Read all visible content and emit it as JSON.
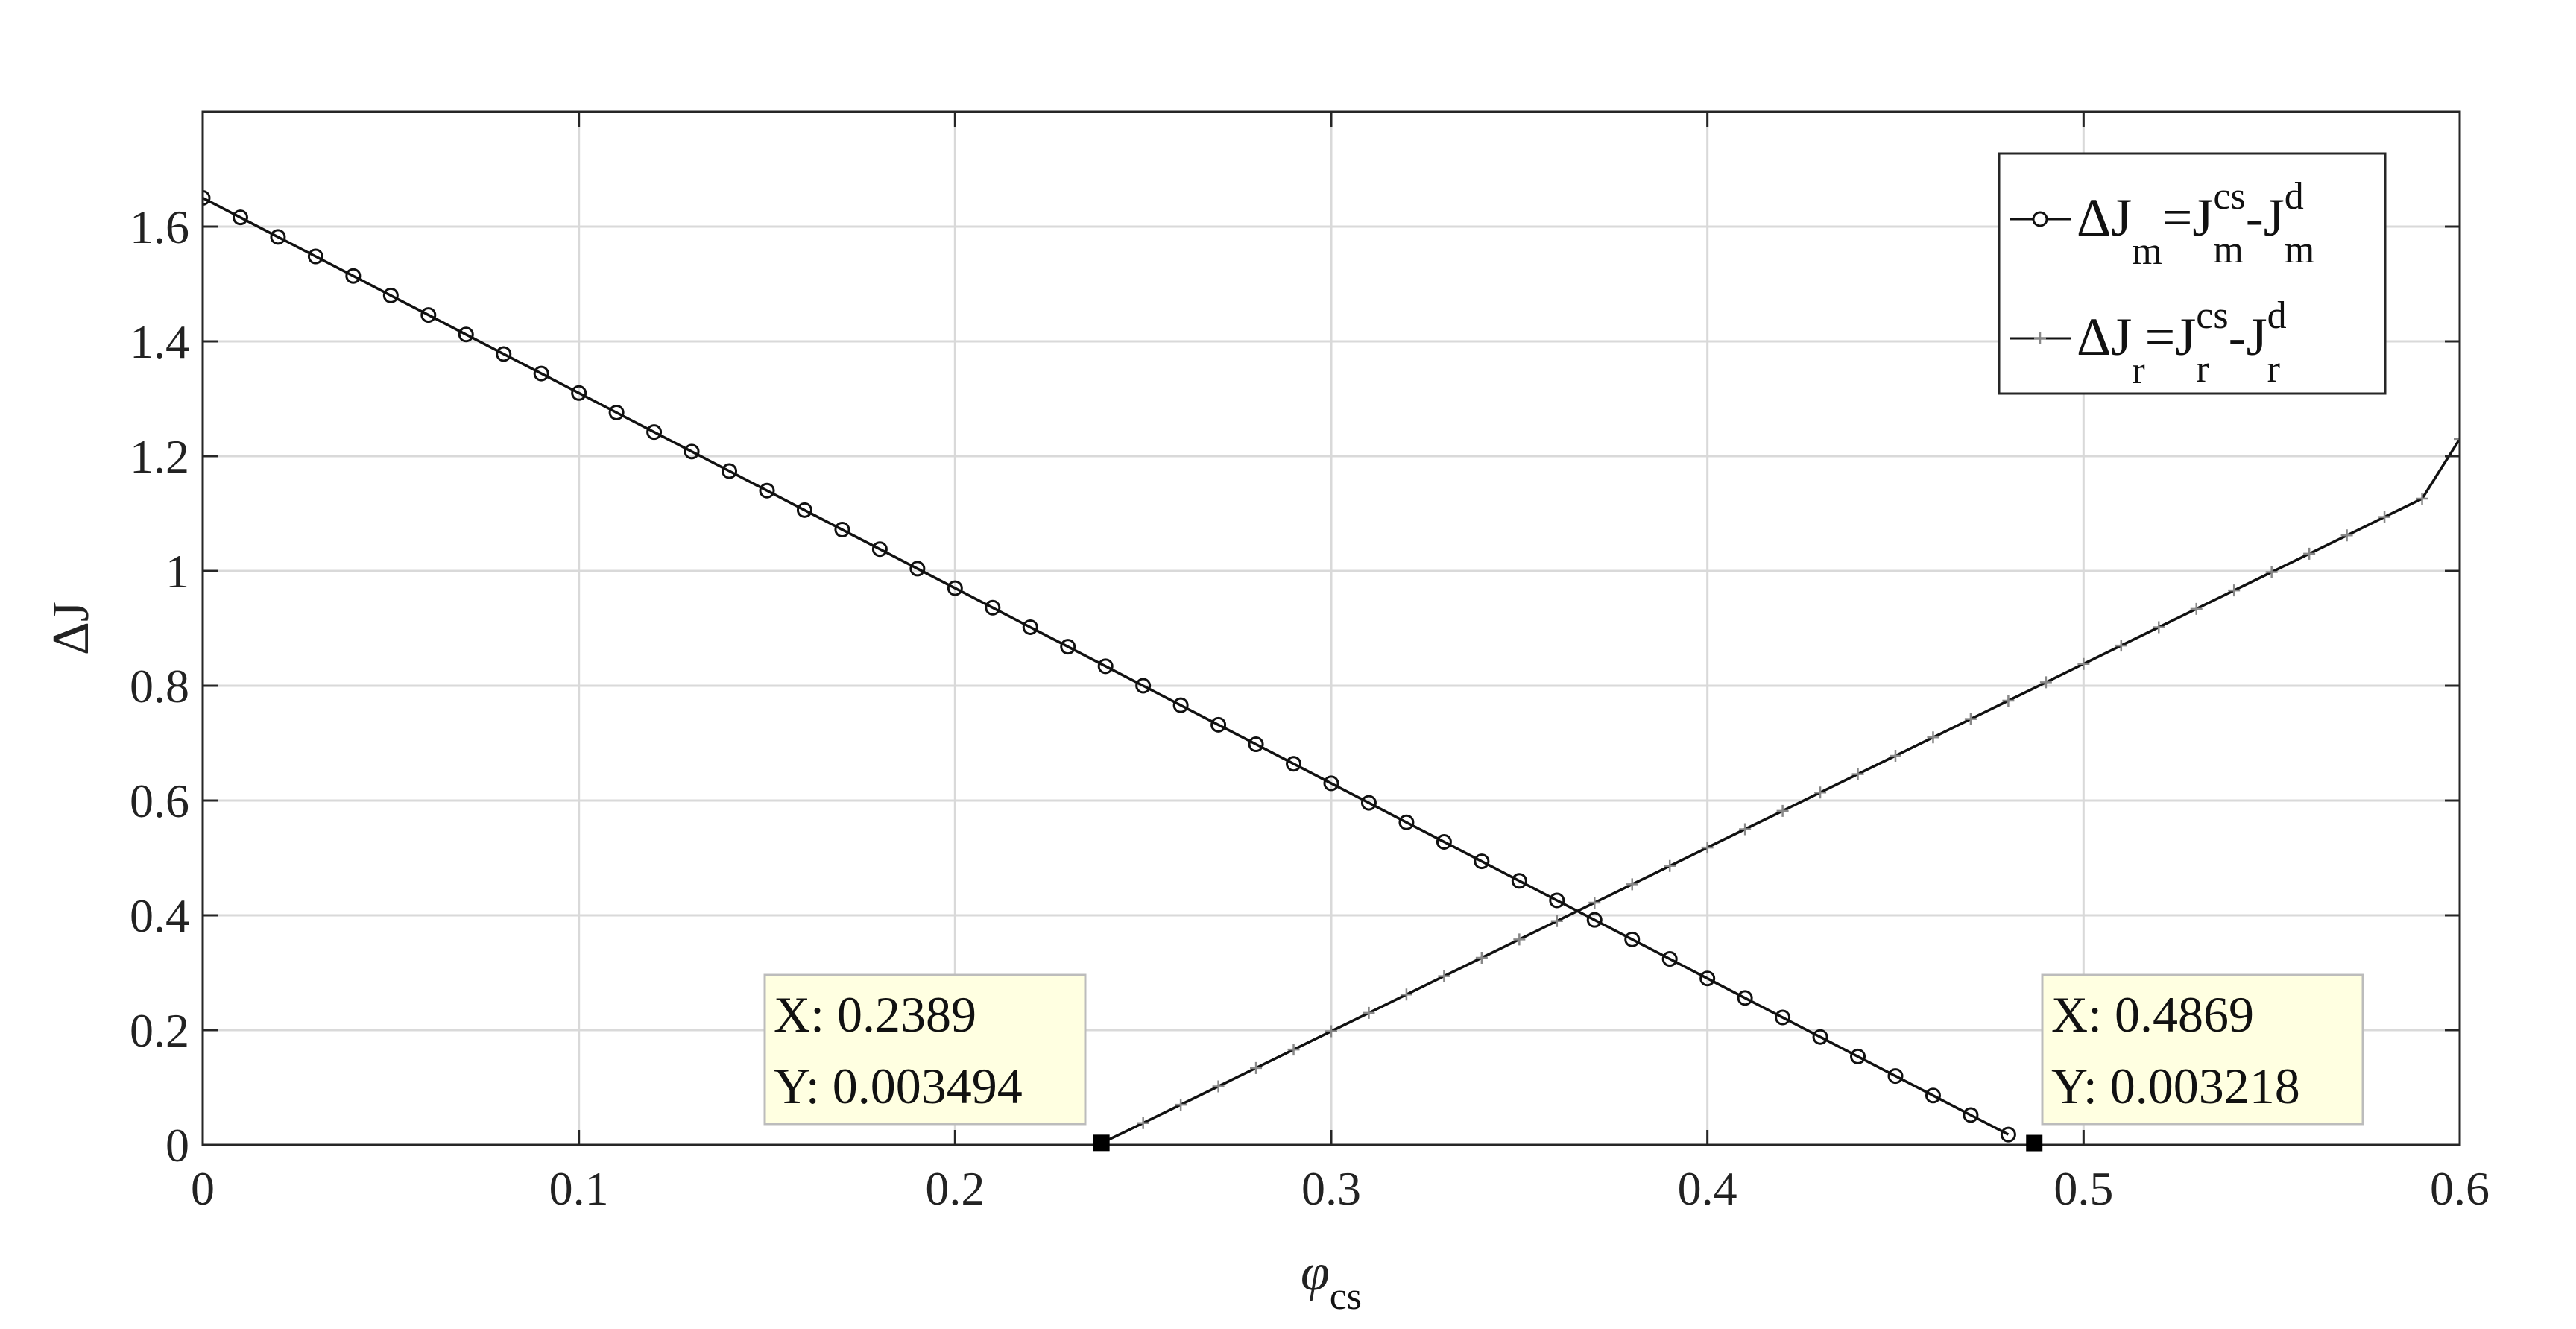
{
  "chart_data": {
    "type": "line",
    "xlabel": "φ",
    "xlabel_sub": "cs",
    "ylabel": "ΔJ",
    "xlim": [
      0,
      0.6
    ],
    "ylim": [
      0,
      1.8
    ],
    "x_ticks": [
      0,
      0.1,
      0.2,
      0.3,
      0.4,
      0.5,
      0.6
    ],
    "x_tick_labels": [
      "0",
      "0.1",
      "0.2",
      "0.3",
      "0.4",
      "0.5",
      "0.6"
    ],
    "y_ticks": [
      0,
      0.2,
      0.4,
      0.6,
      0.8,
      1.0,
      1.2,
      1.4,
      1.6
    ],
    "y_tick_labels": [
      "0",
      "0.2",
      "0.4",
      "0.6",
      "0.8",
      "1",
      "1.2",
      "1.4",
      "1.6"
    ],
    "grid": true,
    "legend_position": "top-right",
    "series": [
      {
        "name": "ΔJm=Jmcs-Jmd",
        "legend": {
          "main": "ΔJ",
          "sub1": "m",
          "eq": "=J",
          "sup2": "cs",
          "sub2": "m",
          "dash": "-J",
          "sup3": "d",
          "sub3": "m"
        },
        "marker": "circle",
        "x": [
          0,
          0.01,
          0.02,
          0.03,
          0.04,
          0.05,
          0.06,
          0.07,
          0.08,
          0.09,
          0.1,
          0.11,
          0.12,
          0.13,
          0.14,
          0.15,
          0.16,
          0.17,
          0.18,
          0.19,
          0.2,
          0.21,
          0.22,
          0.23,
          0.24,
          0.25,
          0.26,
          0.27,
          0.28,
          0.29,
          0.3,
          0.31,
          0.32,
          0.33,
          0.34,
          0.35,
          0.36,
          0.37,
          0.38,
          0.39,
          0.4,
          0.41,
          0.42,
          0.43,
          0.44,
          0.45,
          0.46,
          0.47,
          0.48
        ],
        "y": [
          1.65,
          1.616,
          1.582,
          1.548,
          1.514,
          1.48,
          1.446,
          1.412,
          1.378,
          1.344,
          1.31,
          1.276,
          1.242,
          1.208,
          1.174,
          1.14,
          1.106,
          1.072,
          1.038,
          1.004,
          0.97,
          0.936,
          0.902,
          0.868,
          0.834,
          0.8,
          0.766,
          0.732,
          0.698,
          0.664,
          0.63,
          0.596,
          0.562,
          0.528,
          0.494,
          0.46,
          0.426,
          0.392,
          0.358,
          0.324,
          0.29,
          0.256,
          0.222,
          0.188,
          0.154,
          0.12,
          0.086,
          0.052,
          0.018
        ]
      },
      {
        "name": "ΔJr=Jrcs-Jrd",
        "legend": {
          "main": "ΔJ",
          "sub1": "r",
          "eq": "=J",
          "sup2": "cs",
          "sub2": "r",
          "dash": "-J",
          "sup3": "d",
          "sub3": "r"
        },
        "marker": "plus",
        "x": [
          0.2389,
          0.25,
          0.26,
          0.27,
          0.28,
          0.29,
          0.3,
          0.31,
          0.32,
          0.33,
          0.34,
          0.35,
          0.36,
          0.37,
          0.38,
          0.39,
          0.4,
          0.41,
          0.42,
          0.43,
          0.44,
          0.45,
          0.46,
          0.47,
          0.48,
          0.49,
          0.5,
          0.51,
          0.52,
          0.53,
          0.54,
          0.55,
          0.56,
          0.57,
          0.58,
          0.59,
          0.6
        ],
        "y": [
          0.003,
          0.038,
          0.07,
          0.102,
          0.134,
          0.166,
          0.198,
          0.23,
          0.262,
          0.294,
          0.326,
          0.358,
          0.39,
          0.422,
          0.454,
          0.486,
          0.518,
          0.55,
          0.582,
          0.614,
          0.646,
          0.678,
          0.71,
          0.742,
          0.774,
          0.806,
          0.838,
          0.87,
          0.902,
          0.934,
          0.966,
          0.998,
          1.03,
          1.062,
          1.094,
          1.126,
          1.23
        ]
      }
    ],
    "datatips": [
      {
        "x": 0.2389,
        "y": 0.003494,
        "x_text": "X: 0.2389",
        "y_text": "Y: 0.003494"
      },
      {
        "x": 0.4869,
        "y": 0.003218,
        "x_text": "X: 0.4869",
        "y_text": "Y: 0.003218"
      }
    ],
    "colors": {
      "line": "#111111",
      "grid": "#d9d9d9",
      "tip_bg": "#ffffe1",
      "tip_border": "#bcbcbc"
    }
  }
}
